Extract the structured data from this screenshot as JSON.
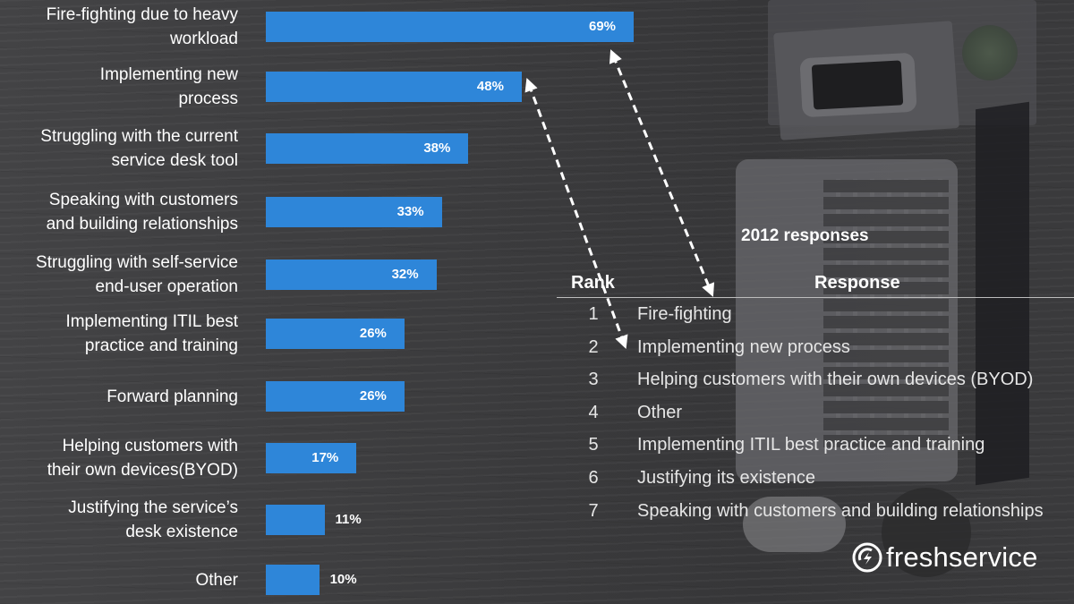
{
  "chart_data": {
    "type": "bar",
    "orientation": "horizontal",
    "categories": [
      "Fire-fighting due to heavy workload",
      "Implementing new process",
      "Struggling with the current service desk tool",
      "Speaking with customers and building relationships",
      "Struggling with self-service end-user operation",
      "Implementing ITIL best practice and training",
      "Forward planning",
      "Helping customers with their own devices(BYOD)",
      "Justifying the service’s desk existence",
      "Other"
    ],
    "category_lines": [
      [
        "Fire-fighting due to heavy",
        "workload"
      ],
      [
        "Implementing new",
        "process"
      ],
      [
        "Struggling with the current",
        "service desk tool"
      ],
      [
        "Speaking with customers",
        "and building relationships"
      ],
      [
        "Struggling with self-service",
        "end-user operation"
      ],
      [
        "Implementing ITIL best",
        "practice and training"
      ],
      [
        "Forward planning"
      ],
      [
        "Helping customers with",
        "their own devices(BYOD)"
      ],
      [
        "Justifying the service’s",
        "desk existence"
      ],
      [
        "Other"
      ]
    ],
    "values": [
      69,
      48,
      38,
      33,
      32,
      26,
      26,
      17,
      11,
      10
    ],
    "value_labels": [
      "69%",
      "48%",
      "38%",
      "33%",
      "32%",
      "26%",
      "26%",
      "17%",
      "11%",
      "10%"
    ],
    "bar_color": "#2e86d9",
    "grid": false
  },
  "table": {
    "title": "2012 responses",
    "headers": {
      "rank": "Rank",
      "response": "Response"
    },
    "rows": [
      {
        "rank": "1",
        "response": "Fire-fighting"
      },
      {
        "rank": "2",
        "response": "Implementing new process"
      },
      {
        "rank": "3",
        "response": "Helping customers with their own devices (BYOD)"
      },
      {
        "rank": "4",
        "response": "Other"
      },
      {
        "rank": "5",
        "response": "Implementing ITIL best practice and training"
      },
      {
        "rank": "6",
        "response": "Justifying its existence"
      },
      {
        "rank": "7",
        "response": "Speaking with customers and building relationships"
      }
    ]
  },
  "logo": {
    "icon": "freshservice-logo-icon",
    "text": "freshservice"
  },
  "colors": {
    "bar": "#2e86d9",
    "text": "#ffffff",
    "table_text": "#e6e6e6"
  }
}
